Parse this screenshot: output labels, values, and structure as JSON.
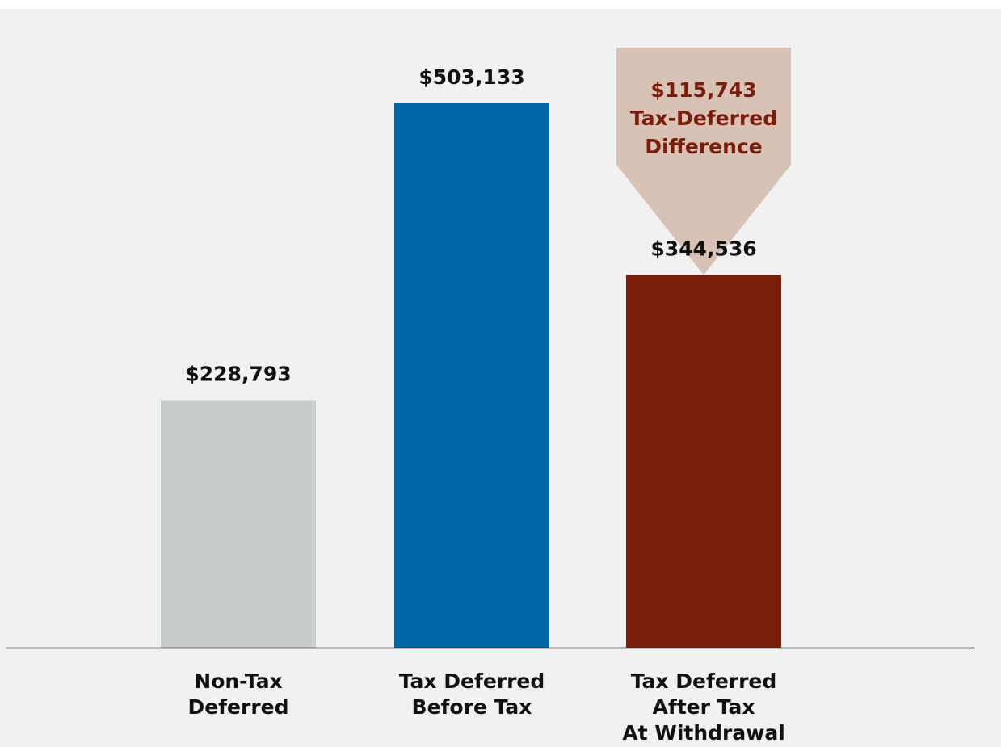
{
  "chart_data": {
    "type": "bar",
    "categories": [
      [
        "Non-Tax",
        "Deferred"
      ],
      [
        "Tax Deferred",
        "Before Tax"
      ],
      [
        "Tax Deferred",
        "After Tax",
        "At Withdrawal"
      ]
    ],
    "values": [
      228793,
      503133,
      344536
    ],
    "value_labels": [
      "$228,793",
      "$503,133",
      "$344,536"
    ],
    "bar_colors": [
      "#c7cdcc",
      "#0067a9",
      "#7a1e0b"
    ],
    "ylim": [
      0,
      580000
    ],
    "grid": false,
    "annotation": {
      "lines": [
        "$115,743",
        "Tax-Deferred",
        "Difference"
      ],
      "value": 115743,
      "target_category_index": 2,
      "fill": "#d8c2b5",
      "text_color": "#7a1e0b"
    },
    "axis_color": "#222222",
    "background": "#f0f1f0"
  }
}
